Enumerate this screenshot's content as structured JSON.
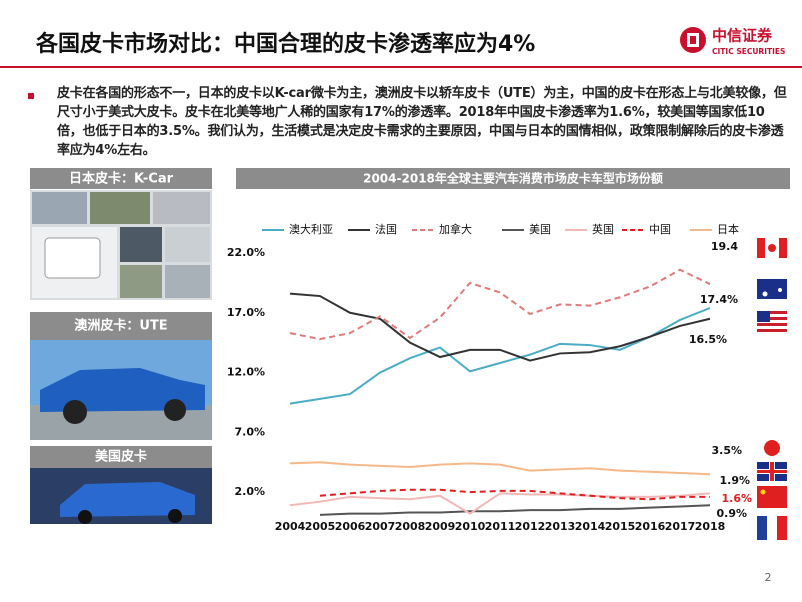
{
  "header": {
    "title": "各国皮卡市场对比：中国合理的皮卡渗透率应为4%",
    "logo_cn": "中信证券",
    "logo_en": "CITIC SECURITIES"
  },
  "bullet": "皮卡在各国的形态不一，日本的皮卡以K-car微卡为主，澳洲皮卡以轿车皮卡（UTE）为主，中国的皮卡在形态上与北美较像，但尺寸小于美式大皮卡。皮卡在北美等地广人稀的国家有17%的渗透率。2018年中国皮卡渗透率为1.6%，较美国等国家低10倍，也低于日本的3.5%。我们认为，生活模式是决定皮卡需求的主要原因，中国与日本的国情相似，政策限制解除后的皮卡渗透率应为4%左右。",
  "panels": [
    {
      "label": "日本皮卡：K-Car"
    },
    {
      "label": "澳洲皮卡：UTE"
    },
    {
      "label": "美国皮卡"
    }
  ],
  "chart_data": {
    "type": "line",
    "title": "2004-2018年全球主要汽车消费市场皮卡车型市场份额",
    "categories": [
      "2004",
      "2005",
      "2006",
      "2007",
      "2008",
      "2009",
      "2010",
      "2011",
      "2012",
      "2013",
      "2014",
      "2015",
      "2016",
      "2017",
      "2018"
    ],
    "ylim": [
      -1,
      22
    ],
    "yticks": [
      {
        "value": 2,
        "label": "2.0%"
      },
      {
        "value": 7,
        "label": "7.0%"
      },
      {
        "value": 12,
        "label": "12.0%"
      },
      {
        "value": 17,
        "label": "17.0%"
      },
      {
        "value": 22,
        "label": "22.0%"
      }
    ],
    "grid": false,
    "series": [
      {
        "name": "澳大利亚",
        "color": "#4bacc6",
        "dashed": false,
        "values": [
          9.4,
          9.8,
          10.2,
          12.0,
          13.2,
          14.1,
          12.1,
          12.8,
          13.5,
          14.4,
          14.3,
          13.9,
          15.0,
          16.4,
          17.4
        ],
        "value_labels": [
          null,
          null,
          null,
          null,
          null,
          null,
          null,
          null,
          null,
          null,
          null,
          null,
          null,
          null,
          "17.4%"
        ]
      },
      {
        "name": "法国",
        "color": "#333333",
        "dashed": false,
        "values": [
          18.6,
          18.4,
          17.0,
          16.5,
          14.5,
          13.3,
          13.9,
          13.9,
          13.0,
          13.6,
          13.7,
          14.2,
          15.0,
          15.9,
          16.5
        ],
        "value_labels": [
          null,
          null,
          null,
          null,
          null,
          null,
          null,
          null,
          null,
          null,
          null,
          null,
          null,
          null,
          "16.5%"
        ]
      },
      {
        "name": "加拿大",
        "color": "#e07a7a",
        "dashed": true,
        "values": [
          15.3,
          14.8,
          15.3,
          16.7,
          14.9,
          16.6,
          19.5,
          18.7,
          16.9,
          17.7,
          17.6,
          18.3,
          19.2,
          20.6,
          19.4
        ],
        "value_labels": [
          null,
          null,
          null,
          null,
          null,
          null,
          null,
          null,
          null,
          null,
          null,
          null,
          null,
          null,
          "19.4"
        ]
      },
      {
        "name": "美国",
        "color": "#555555",
        "dashed": false,
        "values": [
          null,
          0.1,
          0.2,
          0.2,
          0.3,
          0.3,
          0.4,
          0.4,
          0.5,
          0.5,
          0.6,
          0.6,
          0.7,
          0.8,
          0.9
        ],
        "value_labels": [
          null,
          null,
          null,
          null,
          null,
          null,
          null,
          null,
          null,
          null,
          null,
          null,
          null,
          null,
          "0.9%"
        ]
      },
      {
        "name": "英国",
        "color": "#f2b8b8",
        "dashed": false,
        "values": [
          0.9,
          1.2,
          1.6,
          1.5,
          1.4,
          1.7,
          0.2,
          1.9,
          1.8,
          1.8,
          1.7,
          1.6,
          1.6,
          1.7,
          1.9
        ],
        "value_labels": [
          null,
          null,
          null,
          null,
          null,
          null,
          null,
          null,
          null,
          null,
          null,
          null,
          null,
          null,
          "1.9%"
        ]
      },
      {
        "name": "中国",
        "color": "#e02020",
        "dashed": true,
        "values": [
          null,
          1.7,
          1.9,
          2.1,
          2.2,
          2.2,
          2.0,
          2.1,
          2.1,
          1.9,
          1.7,
          1.5,
          1.4,
          1.6,
          1.6
        ],
        "value_labels": [
          null,
          null,
          null,
          null,
          null,
          null,
          null,
          null,
          null,
          null,
          null,
          null,
          null,
          null,
          "1.6%"
        ]
      },
      {
        "name": "日本",
        "color": "#f5b88a",
        "dashed": false,
        "values": [
          4.4,
          4.5,
          4.3,
          4.2,
          4.1,
          4.3,
          4.4,
          4.3,
          3.8,
          3.9,
          4.0,
          3.8,
          3.7,
          3.6,
          3.5
        ],
        "value_labels": [
          null,
          null,
          null,
          null,
          null,
          null,
          null,
          null,
          null,
          null,
          null,
          null,
          null,
          null,
          "3.5%"
        ]
      }
    ]
  },
  "page_number": "2"
}
